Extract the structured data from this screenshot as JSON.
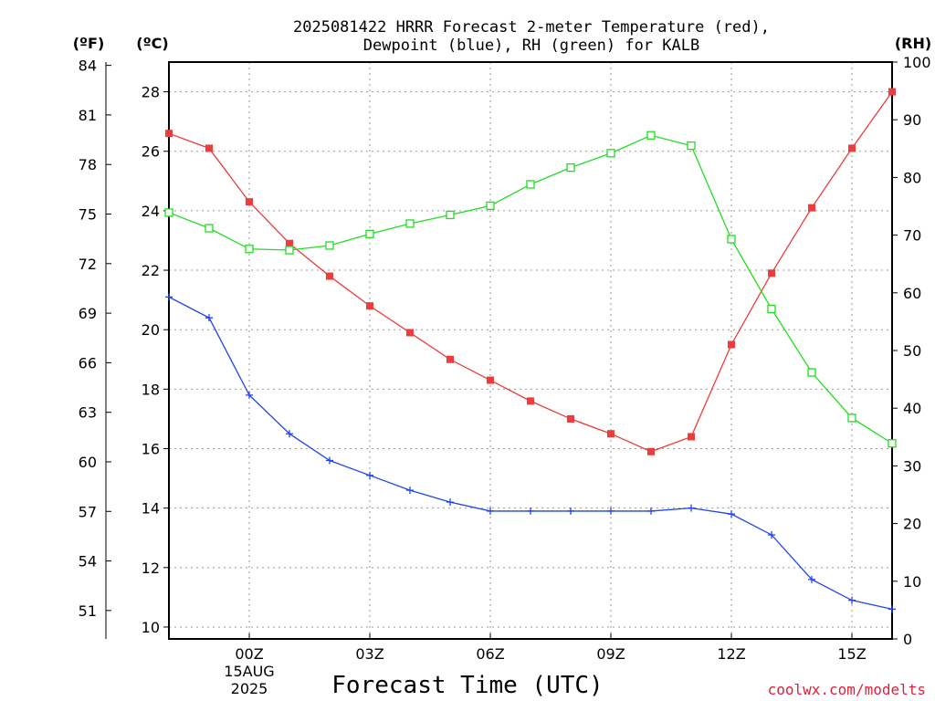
{
  "chart_data": {
    "type": "line",
    "title_lines": [
      "2025081422 HRRR Forecast 2-meter Temperature (red),",
      "Dewpoint (blue), RH (green) for KALB"
    ],
    "xlabel": "Forecast Time (UTC)",
    "credit": "coolwx.com/modelts",
    "x_hours": [
      -2,
      -1,
      0,
      1,
      2,
      3,
      4,
      5,
      6,
      7,
      8,
      9,
      10,
      11,
      12,
      13,
      14,
      15,
      16
    ],
    "x_ticks": [
      {
        "hour": 0,
        "label": "00Z",
        "sub": [
          "15AUG",
          "2025"
        ]
      },
      {
        "hour": 3,
        "label": "03Z"
      },
      {
        "hour": 6,
        "label": "06Z"
      },
      {
        "hour": 9,
        "label": "09Z"
      },
      {
        "hour": 12,
        "label": "12Z"
      },
      {
        "hour": 15,
        "label": "15Z"
      }
    ],
    "x_range": [
      -2,
      16
    ],
    "celsius_axis": {
      "unit": "(ºC)",
      "range": [
        9.6,
        29.0
      ],
      "ticks": [
        10,
        12,
        14,
        16,
        18,
        20,
        22,
        24,
        26,
        28
      ]
    },
    "fahrenheit_axis": {
      "unit": "(ºF)",
      "ticks": [
        51,
        54,
        57,
        60,
        63,
        66,
        69,
        72,
        75,
        78,
        81,
        84
      ]
    },
    "rh_axis": {
      "unit": "(RH)",
      "range": [
        0,
        100
      ],
      "ticks": [
        0,
        10,
        20,
        30,
        40,
        50,
        60,
        70,
        80,
        90,
        100
      ]
    },
    "grid": true,
    "series": [
      {
        "name": "Temperature",
        "axis": "celsius",
        "color": "#ee3b3b",
        "marker": "filled-square",
        "values": [
          26.6,
          26.1,
          24.3,
          22.9,
          21.8,
          20.8,
          19.9,
          19.0,
          18.3,
          17.6,
          17.0,
          16.5,
          15.9,
          16.4,
          19.5,
          21.9,
          24.1,
          26.1,
          28.0
        ]
      },
      {
        "name": "Dewpoint",
        "axis": "celsius",
        "color": "#2244ee",
        "marker": "plus",
        "values": [
          21.1,
          20.4,
          17.8,
          16.5,
          15.6,
          15.1,
          14.6,
          14.2,
          13.9,
          13.9,
          13.9,
          13.9,
          13.9,
          14.0,
          13.8,
          13.1,
          11.6,
          10.9,
          10.6
        ]
      },
      {
        "name": "RH",
        "axis": "rh",
        "color": "#22dd22",
        "marker": "open-square",
        "values": [
          73.9,
          71.2,
          67.6,
          67.4,
          68.2,
          70.2,
          72.0,
          73.5,
          75.1,
          78.8,
          81.7,
          84.2,
          87.3,
          85.5,
          69.3,
          57.2,
          46.2,
          38.3,
          33.9
        ]
      }
    ]
  }
}
